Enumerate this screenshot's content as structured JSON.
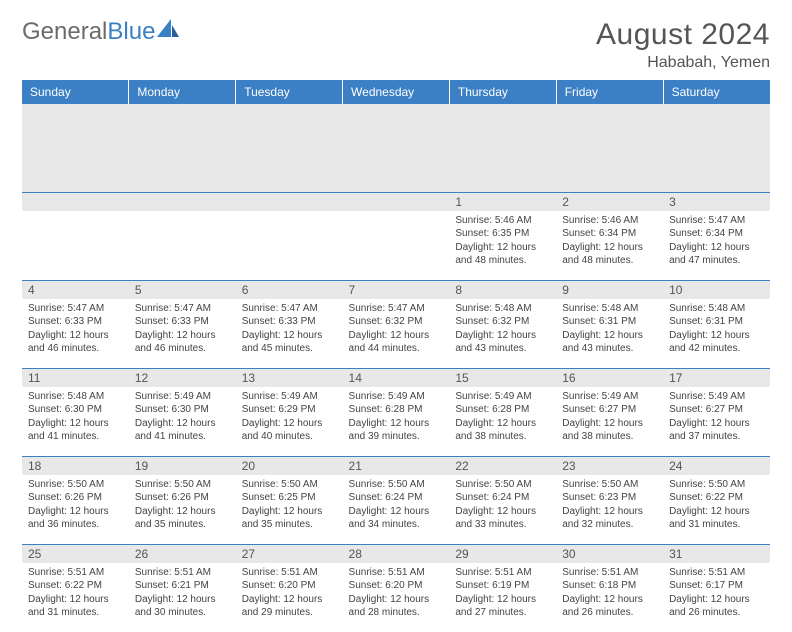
{
  "brand": {
    "name_a": "General",
    "name_b": "Blue",
    "logo_color": "#3b7fc4"
  },
  "title": "August 2024",
  "location": "Hababah, Yemen",
  "colors": {
    "header_bg": "#3b7fc4",
    "header_text": "#ffffff",
    "daynum_bg": "#e8e8e8",
    "border": "#3b7fc4"
  },
  "weekdays": [
    "Sunday",
    "Monday",
    "Tuesday",
    "Wednesday",
    "Thursday",
    "Friday",
    "Saturday"
  ],
  "first_weekday_index": 4,
  "days": [
    {
      "n": 1,
      "sunrise": "5:46 AM",
      "sunset": "6:35 PM",
      "daylight": "12 hours and 48 minutes."
    },
    {
      "n": 2,
      "sunrise": "5:46 AM",
      "sunset": "6:34 PM",
      "daylight": "12 hours and 48 minutes."
    },
    {
      "n": 3,
      "sunrise": "5:47 AM",
      "sunset": "6:34 PM",
      "daylight": "12 hours and 47 minutes."
    },
    {
      "n": 4,
      "sunrise": "5:47 AM",
      "sunset": "6:33 PM",
      "daylight": "12 hours and 46 minutes."
    },
    {
      "n": 5,
      "sunrise": "5:47 AM",
      "sunset": "6:33 PM",
      "daylight": "12 hours and 46 minutes."
    },
    {
      "n": 6,
      "sunrise": "5:47 AM",
      "sunset": "6:33 PM",
      "daylight": "12 hours and 45 minutes."
    },
    {
      "n": 7,
      "sunrise": "5:47 AM",
      "sunset": "6:32 PM",
      "daylight": "12 hours and 44 minutes."
    },
    {
      "n": 8,
      "sunrise": "5:48 AM",
      "sunset": "6:32 PM",
      "daylight": "12 hours and 43 minutes."
    },
    {
      "n": 9,
      "sunrise": "5:48 AM",
      "sunset": "6:31 PM",
      "daylight": "12 hours and 43 minutes."
    },
    {
      "n": 10,
      "sunrise": "5:48 AM",
      "sunset": "6:31 PM",
      "daylight": "12 hours and 42 minutes."
    },
    {
      "n": 11,
      "sunrise": "5:48 AM",
      "sunset": "6:30 PM",
      "daylight": "12 hours and 41 minutes."
    },
    {
      "n": 12,
      "sunrise": "5:49 AM",
      "sunset": "6:30 PM",
      "daylight": "12 hours and 41 minutes."
    },
    {
      "n": 13,
      "sunrise": "5:49 AM",
      "sunset": "6:29 PM",
      "daylight": "12 hours and 40 minutes."
    },
    {
      "n": 14,
      "sunrise": "5:49 AM",
      "sunset": "6:28 PM",
      "daylight": "12 hours and 39 minutes."
    },
    {
      "n": 15,
      "sunrise": "5:49 AM",
      "sunset": "6:28 PM",
      "daylight": "12 hours and 38 minutes."
    },
    {
      "n": 16,
      "sunrise": "5:49 AM",
      "sunset": "6:27 PM",
      "daylight": "12 hours and 38 minutes."
    },
    {
      "n": 17,
      "sunrise": "5:49 AM",
      "sunset": "6:27 PM",
      "daylight": "12 hours and 37 minutes."
    },
    {
      "n": 18,
      "sunrise": "5:50 AM",
      "sunset": "6:26 PM",
      "daylight": "12 hours and 36 minutes."
    },
    {
      "n": 19,
      "sunrise": "5:50 AM",
      "sunset": "6:26 PM",
      "daylight": "12 hours and 35 minutes."
    },
    {
      "n": 20,
      "sunrise": "5:50 AM",
      "sunset": "6:25 PM",
      "daylight": "12 hours and 35 minutes."
    },
    {
      "n": 21,
      "sunrise": "5:50 AM",
      "sunset": "6:24 PM",
      "daylight": "12 hours and 34 minutes."
    },
    {
      "n": 22,
      "sunrise": "5:50 AM",
      "sunset": "6:24 PM",
      "daylight": "12 hours and 33 minutes."
    },
    {
      "n": 23,
      "sunrise": "5:50 AM",
      "sunset": "6:23 PM",
      "daylight": "12 hours and 32 minutes."
    },
    {
      "n": 24,
      "sunrise": "5:50 AM",
      "sunset": "6:22 PM",
      "daylight": "12 hours and 31 minutes."
    },
    {
      "n": 25,
      "sunrise": "5:51 AM",
      "sunset": "6:22 PM",
      "daylight": "12 hours and 31 minutes."
    },
    {
      "n": 26,
      "sunrise": "5:51 AM",
      "sunset": "6:21 PM",
      "daylight": "12 hours and 30 minutes."
    },
    {
      "n": 27,
      "sunrise": "5:51 AM",
      "sunset": "6:20 PM",
      "daylight": "12 hours and 29 minutes."
    },
    {
      "n": 28,
      "sunrise": "5:51 AM",
      "sunset": "6:20 PM",
      "daylight": "12 hours and 28 minutes."
    },
    {
      "n": 29,
      "sunrise": "5:51 AM",
      "sunset": "6:19 PM",
      "daylight": "12 hours and 27 minutes."
    },
    {
      "n": 30,
      "sunrise": "5:51 AM",
      "sunset": "6:18 PM",
      "daylight": "12 hours and 26 minutes."
    },
    {
      "n": 31,
      "sunrise": "5:51 AM",
      "sunset": "6:17 PM",
      "daylight": "12 hours and 26 minutes."
    }
  ],
  "labels": {
    "sunrise": "Sunrise:",
    "sunset": "Sunset:",
    "daylight": "Daylight:"
  }
}
